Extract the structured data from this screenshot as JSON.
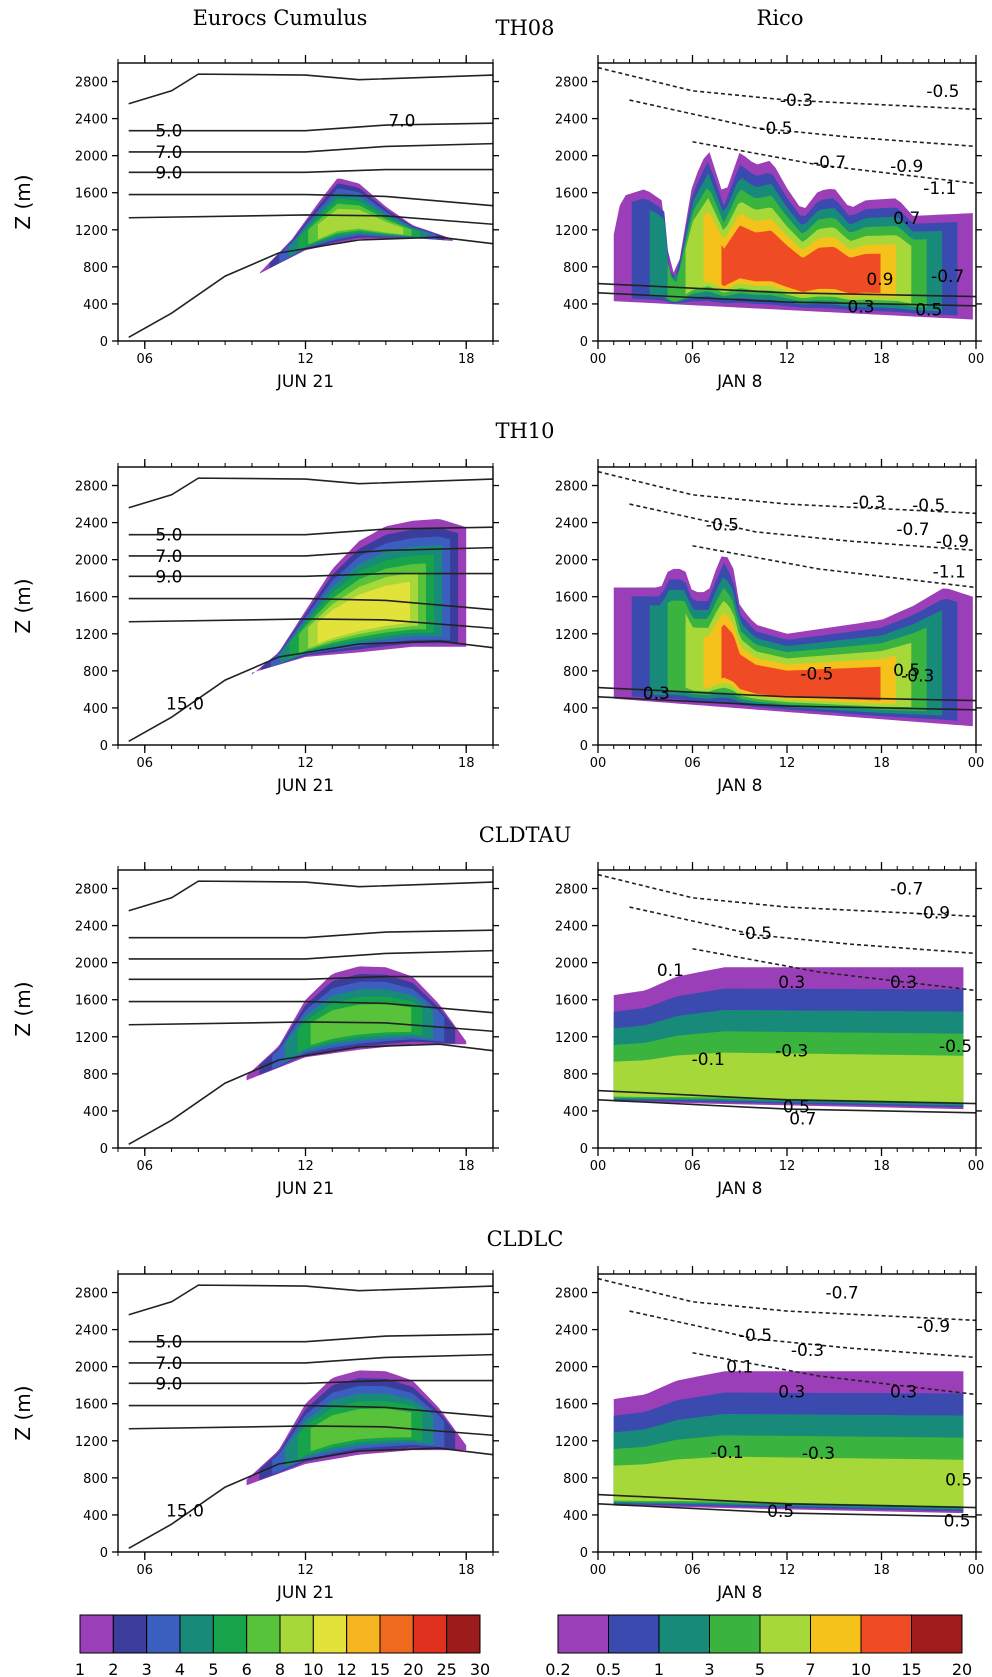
{
  "column_titles": {
    "left": "Eurocs Cumulus",
    "right": "Rico"
  },
  "row_titles": [
    "TH08",
    "TH10",
    "CLDTAU",
    "CLDLC"
  ],
  "colors": {
    "scale": [
      "#9b3fb8",
      "#3c3c9c",
      "#3a5fbf",
      "#178a7a",
      "#17a34a",
      "#58c23a",
      "#a6d83a",
      "#e3e23a",
      "#f7b51f",
      "#ef6a1f",
      "#e0301e",
      "#9c1c1c"
    ],
    "rico_scale": [
      "#9b3fb8",
      "#3a4aaf",
      "#178a7a",
      "#3bb33f",
      "#a6d83a",
      "#f5c21b",
      "#ef4c26",
      "#a01c1c"
    ]
  },
  "chart_data": [
    {
      "type": "heatmap",
      "panel": "TH08 Eurocs Cumulus",
      "ylabel": "Z (m)",
      "yticks": [
        "0",
        "400",
        "800",
        "1200",
        "1600",
        "2000",
        "2400",
        "2800"
      ],
      "ylim": [
        0,
        3000
      ],
      "xticks": [
        "06",
        "12",
        "18"
      ],
      "xdate": "JUN 21",
      "xlim": [
        5,
        19
      ],
      "contour_labels": [
        {
          "text": "5.0",
          "x": 6.9,
          "y": 2270
        },
        {
          "text": "7.0",
          "x": 6.9,
          "y": 2040
        },
        {
          "text": "9.0",
          "x": 6.9,
          "y": 1820
        },
        {
          "text": "7.0",
          "x": 15.6,
          "y": 2380
        }
      ],
      "cloud": {
        "x_start": 10.3,
        "x_end": 17.5,
        "base": [
          [
            10.3,
            730
          ],
          [
            12,
            980
          ],
          [
            14,
            1100
          ],
          [
            16,
            1110
          ],
          [
            17.5,
            1080
          ]
        ],
        "top": [
          [
            10.3,
            740
          ],
          [
            11.5,
            1100
          ],
          [
            12.5,
            1500
          ],
          [
            13.2,
            1760
          ],
          [
            14,
            1700
          ],
          [
            15,
            1450
          ],
          [
            16,
            1250
          ],
          [
            17.5,
            1100
          ]
        ],
        "max_class": 7
      }
    },
    {
      "type": "heatmap",
      "panel": "TH08 Rico",
      "yticks": [
        "0",
        "400",
        "800",
        "1200",
        "1600",
        "2000",
        "2400",
        "2800"
      ],
      "ylim": [
        0,
        3000
      ],
      "xticks": [
        "00",
        "06",
        "12",
        "18",
        "00"
      ],
      "xdate": "JAN 8",
      "xlim": [
        0,
        24
      ],
      "contour_labels": [
        {
          "text": "-0.3",
          "x": 12.6,
          "y": 2600
        },
        {
          "text": "-0.5",
          "x": 11.3,
          "y": 2300
        },
        {
          "text": "-0.5",
          "x": 21.9,
          "y": 2700
        },
        {
          "text": "-0.7",
          "x": 14.7,
          "y": 1930
        },
        {
          "text": "-0.9",
          "x": 19.6,
          "y": 1890
        },
        {
          "text": "-1.1",
          "x": 21.7,
          "y": 1650
        },
        {
          "text": "0.7",
          "x": 19.6,
          "y": 1330
        },
        {
          "text": "0.9",
          "x": 17.9,
          "y": 670
        },
        {
          "text": "-0.7",
          "x": 22.2,
          "y": 700
        },
        {
          "text": "0.3",
          "x": 16.7,
          "y": 370
        },
        {
          "text": "0.5",
          "x": 21.0,
          "y": 340
        }
      ],
      "cloud": {
        "x_start": 1.0,
        "x_end": 23.8,
        "base": [
          [
            1,
            430
          ],
          [
            24,
            230
          ]
        ],
        "top": [
          [
            1,
            1150
          ],
          [
            1.5,
            1560
          ],
          [
            3,
            1640
          ],
          [
            4.2,
            1500
          ],
          [
            4.5,
            800
          ],
          [
            5,
            700
          ],
          [
            6,
            1700
          ],
          [
            7,
            2080
          ],
          [
            8,
            1550
          ],
          [
            9,
            2040
          ],
          [
            10,
            1900
          ],
          [
            11,
            1950
          ],
          [
            12,
            1650
          ],
          [
            13,
            1400
          ],
          [
            14,
            1620
          ],
          [
            15,
            1650
          ],
          [
            16,
            1430
          ],
          [
            17,
            1520
          ],
          [
            19,
            1540
          ],
          [
            20,
            1350
          ],
          [
            23.8,
            1380
          ]
        ],
        "max_class": 7
      }
    },
    {
      "type": "heatmap",
      "panel": "TH10 Eurocs Cumulus",
      "ylabel": "Z (m)",
      "yticks": [
        "0",
        "400",
        "800",
        "1200",
        "1600",
        "2000",
        "2400",
        "2800"
      ],
      "ylim": [
        0,
        3000
      ],
      "xticks": [
        "06",
        "12",
        "18"
      ],
      "xdate": "JUN 21",
      "xlim": [
        5,
        19
      ],
      "contour_labels": [
        {
          "text": "5.0",
          "x": 6.9,
          "y": 2270
        },
        {
          "text": "7.0",
          "x": 6.9,
          "y": 2040
        },
        {
          "text": "9.0",
          "x": 6.9,
          "y": 1820
        },
        {
          "text": "15.0",
          "x": 7.5,
          "y": 450
        }
      ],
      "cloud": {
        "x_start": 10.0,
        "x_end": 18.0,
        "base": [
          [
            10,
            780
          ],
          [
            12,
            950
          ],
          [
            14,
            1000
          ],
          [
            16,
            1060
          ],
          [
            18,
            1060
          ]
        ],
        "top": [
          [
            10,
            760
          ],
          [
            11,
            1000
          ],
          [
            12,
            1450
          ],
          [
            13,
            1900
          ],
          [
            14,
            2200
          ],
          [
            15,
            2360
          ],
          [
            16,
            2420
          ],
          [
            17,
            2440
          ],
          [
            18,
            2350
          ]
        ],
        "max_class": 8
      }
    },
    {
      "type": "heatmap",
      "panel": "TH10 Rico",
      "yticks": [
        "0",
        "400",
        "800",
        "1200",
        "1600",
        "2000",
        "2400",
        "2800"
      ],
      "ylim": [
        0,
        3000
      ],
      "xticks": [
        "00",
        "06",
        "12",
        "18",
        "00"
      ],
      "xdate": "JAN 8",
      "xlim": [
        0,
        24
      ],
      "contour_labels": [
        {
          "text": "-0.3",
          "x": 17.2,
          "y": 2620
        },
        {
          "text": "-0.5",
          "x": 7.9,
          "y": 2380
        },
        {
          "text": "-0.5",
          "x": 21.0,
          "y": 2590
        },
        {
          "text": "-0.7",
          "x": 20.0,
          "y": 2330
        },
        {
          "text": "-0.9",
          "x": 22.5,
          "y": 2200
        },
        {
          "text": "-1.1",
          "x": 22.3,
          "y": 1870
        },
        {
          "text": "0.3",
          "x": 3.7,
          "y": 560
        },
        {
          "text": "-0.5",
          "x": 13.9,
          "y": 770
        },
        {
          "text": "0.5",
          "x": 19.6,
          "y": 810
        },
        {
          "text": "-0.3",
          "x": 20.3,
          "y": 750
        }
      ],
      "cloud": {
        "x_start": 1.0,
        "x_end": 23.8,
        "base": [
          [
            1,
            500
          ],
          [
            24,
            200
          ]
        ],
        "top": [
          [
            1,
            1700
          ],
          [
            4,
            1700
          ],
          [
            4.5,
            1900
          ],
          [
            5.5,
            1900
          ],
          [
            6,
            1650
          ],
          [
            7,
            1650
          ],
          [
            7.5,
            1900
          ],
          [
            8,
            2100
          ],
          [
            8.6,
            1900
          ],
          [
            9,
            1500
          ],
          [
            10,
            1300
          ],
          [
            12,
            1200
          ],
          [
            14,
            1250
          ],
          [
            16,
            1300
          ],
          [
            18,
            1350
          ],
          [
            20,
            1500
          ],
          [
            22,
            1700
          ],
          [
            23.8,
            1600
          ]
        ],
        "max_class": 7
      }
    },
    {
      "type": "heatmap",
      "panel": "CLDTAU Eurocs Cumulus",
      "ylabel": "Z (m)",
      "yticks": [
        "0",
        "400",
        "800",
        "1200",
        "1600",
        "2000",
        "2400",
        "2800"
      ],
      "ylim": [
        0,
        3000
      ],
      "xticks": [
        "06",
        "12",
        "18"
      ],
      "xdate": "JUN 21",
      "xlim": [
        5,
        19
      ],
      "contour_labels": [],
      "cloud": {
        "x_start": 9.8,
        "x_end": 18.0,
        "base": [
          [
            9.8,
            730
          ],
          [
            12,
            980
          ],
          [
            14,
            1060
          ],
          [
            16,
            1120
          ],
          [
            18,
            1120
          ]
        ],
        "top": [
          [
            9.8,
            780
          ],
          [
            11,
            1100
          ],
          [
            12,
            1600
          ],
          [
            13,
            1880
          ],
          [
            14,
            1960
          ],
          [
            15,
            1950
          ],
          [
            16,
            1850
          ],
          [
            17,
            1550
          ],
          [
            18,
            1150
          ]
        ],
        "max_class": 6
      }
    },
    {
      "type": "heatmap",
      "panel": "CLDTAU Rico",
      "yticks": [
        "0",
        "400",
        "800",
        "1200",
        "1600",
        "2000",
        "2400",
        "2800"
      ],
      "ylim": [
        0,
        3000
      ],
      "xticks": [
        "00",
        "06",
        "12",
        "18",
        "00"
      ],
      "xdate": "JAN 8",
      "xlim": [
        0,
        24
      ],
      "contour_labels": [
        {
          "text": "-0.7",
          "x": 19.6,
          "y": 2800
        },
        {
          "text": "-0.9",
          "x": 21.3,
          "y": 2540
        },
        {
          "text": "-0.5",
          "x": 10.0,
          "y": 2320
        },
        {
          "text": "0.1",
          "x": 4.6,
          "y": 1920
        },
        {
          "text": "0.3",
          "x": 12.3,
          "y": 1790
        },
        {
          "text": "0.3",
          "x": 19.4,
          "y": 1790
        },
        {
          "text": "-0.1",
          "x": 7.0,
          "y": 960
        },
        {
          "text": "-0.3",
          "x": 12.3,
          "y": 1050
        },
        {
          "text": "-0.5",
          "x": 22.7,
          "y": 1100
        },
        {
          "text": "0.5",
          "x": 12.6,
          "y": 450
        },
        {
          "text": "0.7",
          "x": 13.0,
          "y": 320
        }
      ],
      "cloud": {
        "x_start": 1.0,
        "x_end": 23.2,
        "base": [
          [
            1,
            500
          ],
          [
            23.2,
            420
          ]
        ],
        "top": [
          [
            1,
            1650
          ],
          [
            3,
            1700
          ],
          [
            5,
            1850
          ],
          [
            8,
            1950
          ],
          [
            12,
            1950
          ],
          [
            16,
            1950
          ],
          [
            20,
            1950
          ],
          [
            23.2,
            1950
          ]
        ],
        "max_class": 5,
        "bands": true
      }
    },
    {
      "type": "heatmap",
      "panel": "CLDLC Eurocs Cumulus",
      "ylabel": "Z (m)",
      "yticks": [
        "0",
        "400",
        "800",
        "1200",
        "1600",
        "2000",
        "2400",
        "2800"
      ],
      "ylim": [
        0,
        3000
      ],
      "xticks": [
        "06",
        "12",
        "18"
      ],
      "xdate": "JUN 21",
      "xlim": [
        5,
        19
      ],
      "contour_labels": [
        {
          "text": "5.0",
          "x": 6.9,
          "y": 2270
        },
        {
          "text": "7.0",
          "x": 6.9,
          "y": 2040
        },
        {
          "text": "9.0",
          "x": 6.9,
          "y": 1820
        },
        {
          "text": "15.0",
          "x": 7.5,
          "y": 450
        }
      ],
      "cloud": {
        "x_start": 9.8,
        "x_end": 18.0,
        "base": [
          [
            9.8,
            720
          ],
          [
            12,
            950
          ],
          [
            14,
            1050
          ],
          [
            16,
            1100
          ],
          [
            18,
            1100
          ]
        ],
        "top": [
          [
            9.8,
            780
          ],
          [
            11,
            1100
          ],
          [
            12,
            1600
          ],
          [
            13,
            1880
          ],
          [
            14,
            1960
          ],
          [
            15,
            1950
          ],
          [
            16,
            1850
          ],
          [
            17,
            1550
          ],
          [
            18,
            1150
          ]
        ],
        "max_class": 6
      }
    },
    {
      "type": "heatmap",
      "panel": "CLDLC Rico",
      "yticks": [
        "0",
        "400",
        "800",
        "1200",
        "1600",
        "2000",
        "2400",
        "2800"
      ],
      "ylim": [
        0,
        3000
      ],
      "xticks": [
        "00",
        "06",
        "12",
        "18",
        "00"
      ],
      "xdate": "JAN 8",
      "xlim": [
        0,
        24
      ],
      "contour_labels": [
        {
          "text": "-0.7",
          "x": 15.5,
          "y": 2800
        },
        {
          "text": "-0.9",
          "x": 21.3,
          "y": 2440
        },
        {
          "text": "-0.5",
          "x": 10.0,
          "y": 2340
        },
        {
          "text": "-0.3",
          "x": 13.3,
          "y": 2180
        },
        {
          "text": "0.1",
          "x": 9.0,
          "y": 2000
        },
        {
          "text": "0.3",
          "x": 12.3,
          "y": 1730
        },
        {
          "text": "0.3",
          "x": 19.4,
          "y": 1730
        },
        {
          "text": "-0.1",
          "x": 8.2,
          "y": 1080
        },
        {
          "text": "-0.3",
          "x": 14.0,
          "y": 1070
        },
        {
          "text": "0.5",
          "x": 22.9,
          "y": 780
        },
        {
          "text": "0.5",
          "x": 11.6,
          "y": 440
        },
        {
          "text": "0.5",
          "x": 22.8,
          "y": 340
        }
      ],
      "cloud": {
        "x_start": 1.0,
        "x_end": 23.2,
        "base": [
          [
            1,
            500
          ],
          [
            23.2,
            420
          ]
        ],
        "top": [
          [
            1,
            1650
          ],
          [
            3,
            1700
          ],
          [
            5,
            1850
          ],
          [
            8,
            1950
          ],
          [
            12,
            1950
          ],
          [
            16,
            1950
          ],
          [
            20,
            1950
          ],
          [
            23.2,
            1950
          ]
        ],
        "max_class": 5,
        "bands": true
      }
    }
  ],
  "colorbars": {
    "left": {
      "labels": [
        "1",
        "2",
        "3",
        "4",
        "5",
        "6",
        "8",
        "10",
        "12",
        "15",
        "20",
        "25",
        "30"
      ]
    },
    "right": {
      "labels": [
        "0.2",
        "0.5",
        "1",
        "3",
        "5",
        "7",
        "10",
        "15",
        "20"
      ]
    }
  }
}
